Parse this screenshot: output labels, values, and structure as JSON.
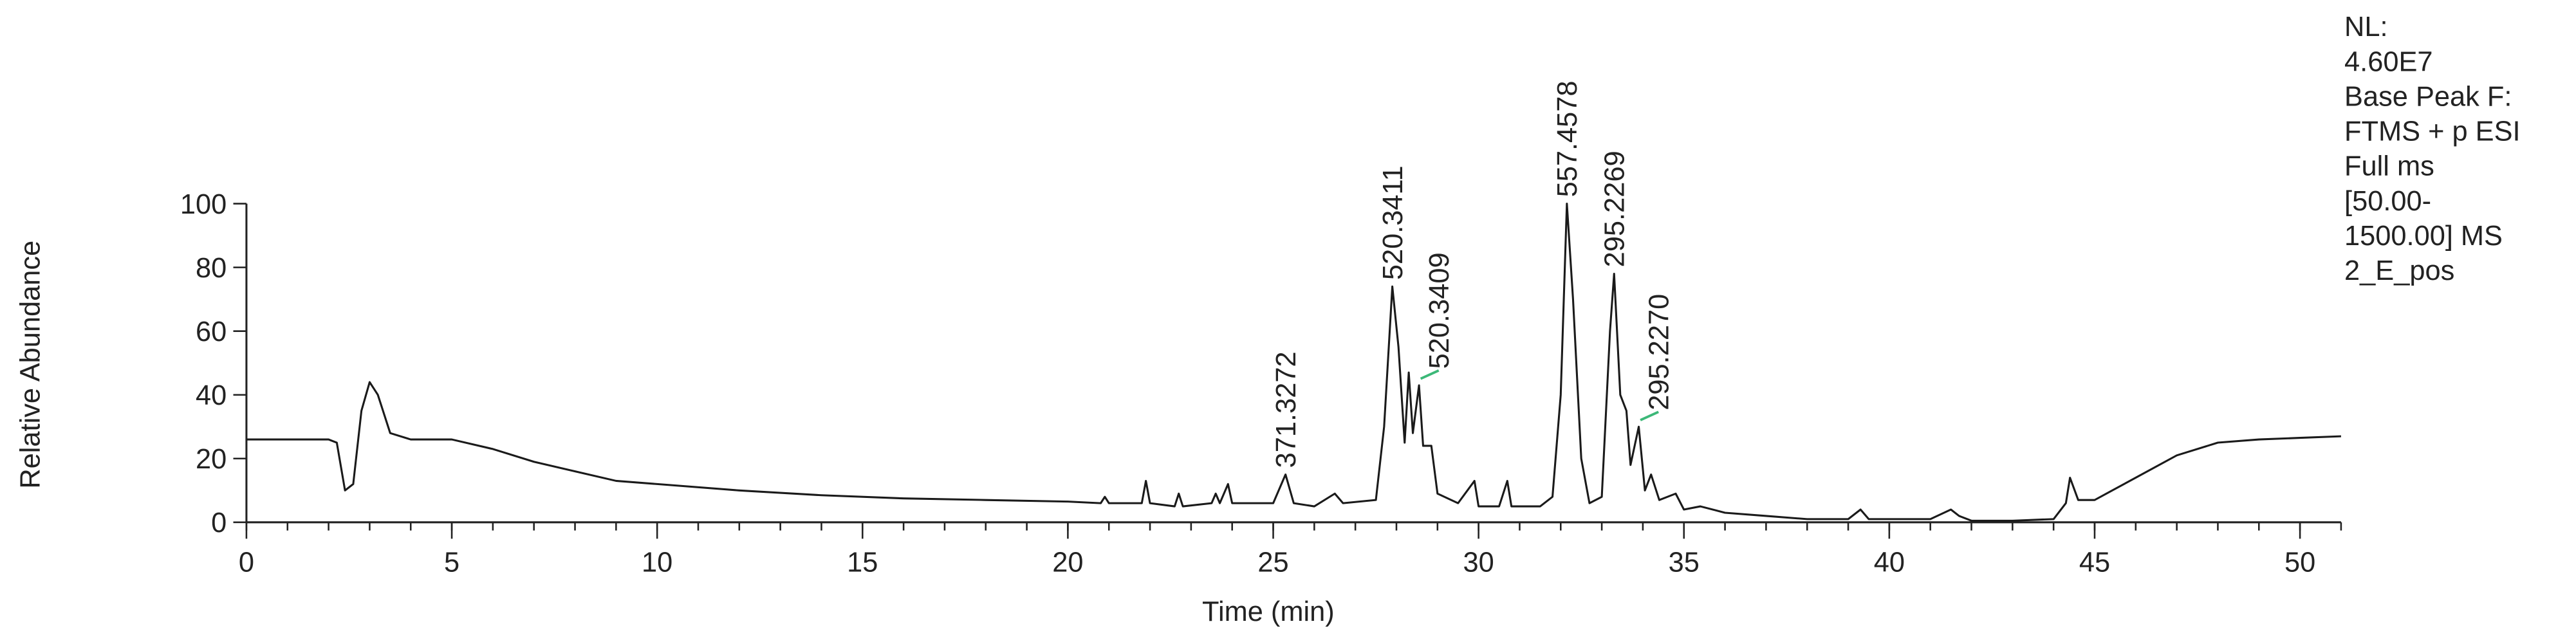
{
  "chart_data": {
    "type": "line",
    "xlabel": "Time (min)",
    "ylabel": "Relative Abundance",
    "xlim": [
      0,
      51
    ],
    "ylim": [
      0,
      100
    ],
    "xticks": [
      0,
      5,
      10,
      15,
      20,
      25,
      30,
      35,
      40,
      45,
      50
    ],
    "xminor_ticks": [
      0,
      1,
      2,
      3,
      4,
      5,
      6,
      7,
      8,
      9,
      10,
      11,
      12,
      13,
      14,
      15,
      16,
      17,
      18,
      19,
      20,
      21,
      22,
      23,
      24,
      25,
      26,
      27,
      28,
      29,
      30,
      31,
      32,
      33,
      34,
      35,
      36,
      37,
      38,
      39,
      40,
      41,
      42,
      43,
      44,
      45,
      46,
      47,
      48,
      49,
      50,
      51
    ],
    "yticks": [
      0,
      20,
      40,
      60,
      80,
      100
    ],
    "color": "#1a1a1a",
    "x": [
      0,
      2,
      2.2,
      2.4,
      2.6,
      2.8,
      3.0,
      3.2,
      3.5,
      4,
      5,
      6,
      7,
      8,
      9,
      10,
      12,
      14,
      16,
      18,
      20,
      20.8,
      20.9,
      21,
      21.8,
      21.9,
      22,
      22.6,
      22.7,
      22.8,
      23.5,
      23.6,
      23.7,
      23.9,
      24.0,
      24.8,
      25.0,
      25.3,
      25.5,
      26,
      26.5,
      26.7,
      27.5,
      27.7,
      27.9,
      28.05,
      28.2,
      28.3,
      28.4,
      28.55,
      28.65,
      28.85,
      29.0,
      29.5,
      29.9,
      30.0,
      30.5,
      30.7,
      30.8,
      31.5,
      31.8,
      32.0,
      32.15,
      32.3,
      32.5,
      32.7,
      33.0,
      33.2,
      33.3,
      33.45,
      33.6,
      33.7,
      33.9,
      34.05,
      34.2,
      34.4,
      34.8,
      35,
      35.4,
      36,
      37,
      38,
      39,
      39.3,
      39.5,
      40,
      41,
      41.5,
      41.7,
      42,
      43,
      44,
      44.3,
      44.4,
      44.6,
      45,
      46,
      47,
      48,
      49,
      50,
      51
    ],
    "values": [
      26,
      26,
      25,
      10,
      12,
      35,
      44,
      40,
      28,
      26,
      26,
      23,
      19,
      16,
      13,
      12,
      10,
      8.5,
      7.5,
      7,
      6.5,
      6,
      8,
      6,
      6,
      13,
      6,
      5,
      9,
      5,
      6,
      9,
      6,
      12,
      6,
      6,
      6,
      15,
      6,
      5,
      9,
      6,
      7,
      30,
      74,
      55,
      25,
      47,
      28,
      43,
      24,
      24,
      9,
      6,
      13,
      5,
      5,
      13,
      5,
      5,
      8,
      40,
      100,
      70,
      20,
      6,
      8,
      60,
      78,
      40,
      35,
      18,
      30,
      10,
      15,
      7,
      9,
      4,
      5,
      3,
      2,
      1,
      1,
      4,
      1,
      1,
      1,
      4,
      2,
      0.5,
      0.5,
      1,
      6,
      14,
      7,
      7,
      14,
      21,
      25,
      26,
      26.5,
      27
    ],
    "annotations": [
      {
        "text": "371.3272",
        "x": 25.3,
        "y": 15
      },
      {
        "text": "520.3411",
        "x": 27.9,
        "y": 74
      },
      {
        "text": "520.3409",
        "x": 28.55,
        "y": 43,
        "leader_color": "#3cb878"
      },
      {
        "text": "557.4578",
        "x": 32.15,
        "y": 100
      },
      {
        "text": "295.2269",
        "x": 33.3,
        "y": 78
      },
      {
        "text": "295.2270",
        "x": 33.9,
        "y": 30,
        "leader_color": "#3cb878"
      }
    ],
    "info": [
      "NL:",
      "4.60E7",
      "Base Peak F:",
      "FTMS + p ESI",
      "Full ms",
      "[50.00-",
      "1500.00]  MS",
      "2_E_pos"
    ]
  }
}
